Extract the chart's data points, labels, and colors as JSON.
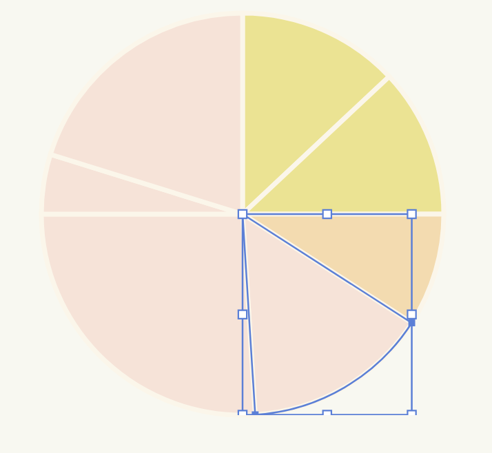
{
  "chart_data": {
    "type": "pie",
    "categories": [
      null,
      null,
      null,
      null,
      null,
      null,
      null
    ],
    "values": [
      13.0,
      12.0,
      9.1,
      14.9,
      26.0,
      4.8,
      20.2
    ],
    "colors": [
      "#ebe393",
      "#ebe393",
      "#f3dbb0",
      "#f6e3d8",
      "#f6e3d8",
      "#f6e3d8",
      "#f6e3d8"
    ]
  }
}
